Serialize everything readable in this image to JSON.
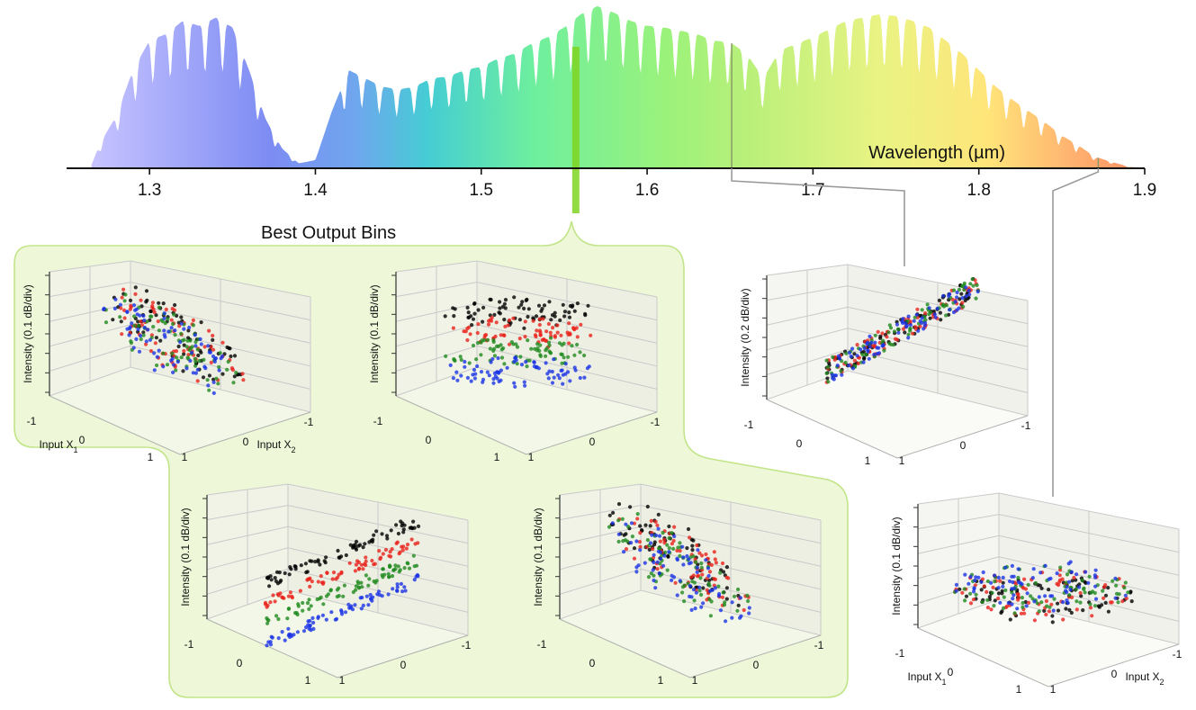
{
  "chart_data": {
    "type": "area",
    "spectrum": {
      "title": "",
      "xlabel": "Wavelength (µm)",
      "xlim": [
        1.25,
        1.9
      ],
      "ticks": [
        1.3,
        1.4,
        1.5,
        1.6,
        1.7,
        1.8,
        1.9
      ],
      "tick_labels": [
        "1.3",
        "1.4",
        "1.5",
        "1.6",
        "1.7",
        "1.8",
        "1.9"
      ],
      "envelope": [
        [
          1.265,
          0.02
        ],
        [
          1.27,
          0.15
        ],
        [
          1.28,
          0.32
        ],
        [
          1.29,
          0.6
        ],
        [
          1.3,
          0.78
        ],
        [
          1.31,
          0.82
        ],
        [
          1.32,
          0.9
        ],
        [
          1.33,
          0.87
        ],
        [
          1.34,
          0.92
        ],
        [
          1.35,
          0.86
        ],
        [
          1.36,
          0.6
        ],
        [
          1.37,
          0.3
        ],
        [
          1.38,
          0.12
        ],
        [
          1.39,
          0.03
        ],
        [
          1.4,
          0.05
        ],
        [
          1.41,
          0.35
        ],
        [
          1.42,
          0.6
        ],
        [
          1.43,
          0.55
        ],
        [
          1.44,
          0.5
        ],
        [
          1.45,
          0.48
        ],
        [
          1.46,
          0.5
        ],
        [
          1.47,
          0.55
        ],
        [
          1.48,
          0.56
        ],
        [
          1.49,
          0.6
        ],
        [
          1.5,
          0.62
        ],
        [
          1.51,
          0.67
        ],
        [
          1.52,
          0.7
        ],
        [
          1.53,
          0.76
        ],
        [
          1.54,
          0.8
        ],
        [
          1.55,
          0.86
        ],
        [
          1.56,
          0.94
        ],
        [
          1.57,
          0.99
        ],
        [
          1.58,
          0.95
        ],
        [
          1.59,
          0.9
        ],
        [
          1.6,
          0.87
        ],
        [
          1.61,
          0.86
        ],
        [
          1.62,
          0.84
        ],
        [
          1.63,
          0.82
        ],
        [
          1.64,
          0.78
        ],
        [
          1.65,
          0.77
        ],
        [
          1.66,
          0.7
        ],
        [
          1.67,
          0.55
        ],
        [
          1.68,
          0.72
        ],
        [
          1.69,
          0.76
        ],
        [
          1.7,
          0.8
        ],
        [
          1.71,
          0.85
        ],
        [
          1.72,
          0.9
        ],
        [
          1.73,
          0.92
        ],
        [
          1.74,
          0.94
        ],
        [
          1.75,
          0.93
        ],
        [
          1.76,
          0.9
        ],
        [
          1.77,
          0.86
        ],
        [
          1.78,
          0.78
        ],
        [
          1.79,
          0.7
        ],
        [
          1.8,
          0.6
        ],
        [
          1.81,
          0.5
        ],
        [
          1.82,
          0.42
        ],
        [
          1.83,
          0.35
        ],
        [
          1.84,
          0.28
        ],
        [
          1.85,
          0.2
        ],
        [
          1.86,
          0.14
        ],
        [
          1.87,
          0.07
        ],
        [
          1.88,
          0.04
        ],
        [
          1.89,
          0.01
        ],
        [
          1.9,
          0.0
        ]
      ],
      "marked_bins": [
        1.557,
        1.651,
        1.872
      ],
      "highlight_bin": 1.557
    },
    "group_label": "Best Output Bins",
    "subplots": [
      {
        "name": "best-bin-1",
        "type": "scatter3d",
        "zlabel": "Intensity (0.1 dB/div)",
        "x1label": "Input X",
        "x1sub": "1",
        "x2label": "Input X",
        "x2sub": "2",
        "x1ticks": [
          "-1",
          "0",
          "1"
        ],
        "x2ticks": [
          "1",
          "0",
          "-1"
        ],
        "pattern": "ellipse"
      },
      {
        "name": "best-bin-2",
        "type": "scatter3d",
        "zlabel": "Intensity (0.1 dB/div)",
        "x1ticks": [
          "-1",
          "0",
          "1"
        ],
        "x2ticks": [
          "1",
          "0",
          "-1"
        ],
        "pattern": "dome"
      },
      {
        "name": "best-bin-3",
        "type": "scatter3d",
        "zlabel": "Intensity (0.1 dB/div)",
        "x1ticks": [
          "-1",
          "0",
          "1"
        ],
        "x2ticks": [
          "1",
          "0",
          "-1"
        ],
        "pattern": "bands"
      },
      {
        "name": "best-bin-4",
        "type": "scatter3d",
        "zlabel": "Intensity (0.1 dB/div)",
        "x1ticks": [
          "-1",
          "0",
          "1"
        ],
        "x2ticks": [
          "1",
          "0",
          "-1"
        ],
        "pattern": "ellipse-steep"
      },
      {
        "name": "bin-1650",
        "type": "scatter3d",
        "zlabel": "Intensity (0.2 dB/div)",
        "x1ticks": [
          "-1",
          "0",
          "1"
        ],
        "x2ticks": [
          "1",
          "0",
          "-1"
        ],
        "pattern": "line"
      },
      {
        "name": "bin-1870",
        "type": "scatter3d",
        "zlabel": "Intensity (0.1 dB/div)",
        "x1label": "Input X",
        "x1sub": "1",
        "x2label": "Input X",
        "x2sub": "2",
        "x1ticks": [
          "-1",
          "0",
          "1"
        ],
        "x2ticks": [
          "1",
          "0",
          "-1"
        ],
        "pattern": "cloud"
      }
    ],
    "series_colors": [
      "#000000",
      "#e8231d",
      "#1f8a1f",
      "#1a33e6"
    ]
  }
}
